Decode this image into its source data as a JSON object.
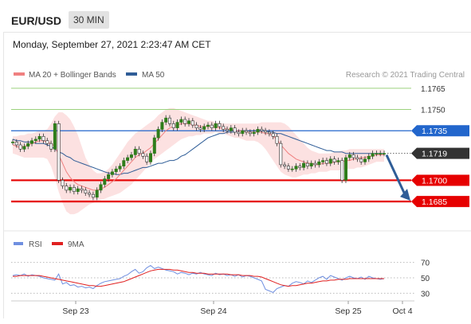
{
  "header": {
    "pair": "EUR/USD",
    "timeframe": "30 MIN"
  },
  "datetime": "Monday, September 27, 2021 2:23:47 AM CET",
  "legend": {
    "bollinger": "MA 20 + Bollinger Bands",
    "ma50": "MA 50",
    "credit": "Research © 2021 Trading Central",
    "rsi": "RSI",
    "nine_ma": "9MA"
  },
  "colors": {
    "bollinger": "#f08080",
    "band_fill": "#fcdcdc",
    "ma50": "#2f5d97",
    "green_level": "#9bd27d",
    "blue_level": "#2266cc",
    "red_level": "#e60000",
    "current_price": "#333333",
    "arrow": "#2f5d97",
    "rsi": "#6f8fe0",
    "rsi_ma": "#e02020",
    "candle_up": "#2e7d1b",
    "candle_down": "#c0392b"
  },
  "chart_data": [
    {
      "type": "candlestick",
      "title": "EUR/USD",
      "ylim": [
        1.168,
        1.177
      ],
      "x_ticks": [
        "Sep 23",
        "Sep 24",
        "Sep 25",
        "Oct 4"
      ],
      "levels": [
        {
          "value": 1.1765,
          "label": "1.1765",
          "kind": "green"
        },
        {
          "value": 1.175,
          "label": "1.1750",
          "kind": "green"
        },
        {
          "value": 1.1735,
          "label": "1.1735",
          "kind": "blue"
        },
        {
          "value": 1.1719,
          "label": "1.1719",
          "kind": "current"
        },
        {
          "value": 1.17,
          "label": "1.1700",
          "kind": "red"
        },
        {
          "value": 1.1685,
          "label": "1.1685",
          "kind": "red"
        }
      ],
      "close": [
        1.1727,
        1.1725,
        1.1722,
        1.1724,
        1.1726,
        1.1728,
        1.1729,
        1.1731,
        1.1728,
        1.1726,
        1.1722,
        1.174,
        1.17,
        1.1696,
        1.1693,
        1.1695,
        1.1692,
        1.1694,
        1.1693,
        1.1691,
        1.169,
        1.1688,
        1.1693,
        1.1697,
        1.1701,
        1.1704,
        1.1706,
        1.1708,
        1.171,
        1.1714,
        1.1716,
        1.1718,
        1.1722,
        1.1719,
        1.1717,
        1.1713,
        1.1719,
        1.173,
        1.1736,
        1.1741,
        1.1744,
        1.174,
        1.1737,
        1.1741,
        1.1743,
        1.174,
        1.1742,
        1.1739,
        1.1737,
        1.1736,
        1.1738,
        1.1739,
        1.1737,
        1.174,
        1.1738,
        1.1736,
        1.1735,
        1.1737,
        1.1734,
        1.1733,
        1.1735,
        1.1734,
        1.1733,
        1.1734,
        1.1736,
        1.1735,
        1.1734,
        1.1733,
        1.1731,
        1.1726,
        1.1711,
        1.171,
        1.1708,
        1.1708,
        1.171,
        1.1709,
        1.1712,
        1.171,
        1.1712,
        1.1711,
        1.1713,
        1.1714,
        1.1712,
        1.1715,
        1.1713,
        1.1714,
        1.17,
        1.1716,
        1.1718,
        1.1716,
        1.1715,
        1.1713,
        1.1715,
        1.1717,
        1.1719,
        1.1719,
        1.1719,
        1.1719
      ],
      "ma20": [
        1.1725,
        1.1724,
        1.1723,
        1.1724,
        1.1725,
        1.1726,
        1.1727,
        1.1728,
        1.1728,
        1.1727,
        1.1726,
        1.1724,
        1.1718,
        1.1712,
        1.1706,
        1.1702,
        1.1699,
        1.1697,
        1.1696,
        1.1695,
        1.1694,
        1.1693,
        1.1693,
        1.1694,
        1.1695,
        1.1697,
        1.1699,
        1.1701,
        1.1704,
        1.1707,
        1.171,
        1.1713,
        1.1716,
        1.1718,
        1.1719,
        1.1721,
        1.1723,
        1.1726,
        1.1729,
        1.1732,
        1.1735,
        1.1737,
        1.1738,
        1.1739,
        1.174,
        1.174,
        1.174,
        1.1739,
        1.1739,
        1.1738,
        1.1738,
        1.1738,
        1.1738,
        1.1738,
        1.1737,
        1.1737,
        1.1736,
        1.1736,
        1.1735,
        1.1735,
        1.1735,
        1.1734,
        1.1734,
        1.1734,
        1.1734,
        1.1734,
        1.1733,
        1.1733,
        1.1731,
        1.1729,
        1.1725,
        1.1722,
        1.1719,
        1.1717,
        1.1715,
        1.1714,
        1.1713,
        1.1712,
        1.1712,
        1.1711,
        1.1711,
        1.1712,
        1.1712,
        1.1712,
        1.1713,
        1.1713,
        1.1713,
        1.1714,
        1.1714,
        1.1715,
        1.1715,
        1.1716,
        1.1716,
        1.1717,
        1.1717,
        1.1718,
        1.1718,
        1.1718
      ],
      "bb_upper": [
        1.1731,
        1.1731,
        1.1732,
        1.1732,
        1.1733,
        1.1733,
        1.1734,
        1.1735,
        1.1735,
        1.1736,
        1.174,
        1.1745,
        1.1748,
        1.1748,
        1.1746,
        1.1743,
        1.1738,
        1.1732,
        1.1724,
        1.1716,
        1.1711,
        1.1707,
        1.1705,
        1.1705,
        1.1706,
        1.1708,
        1.1711,
        1.1715,
        1.1719,
        1.1723,
        1.1727,
        1.173,
        1.1733,
        1.1735,
        1.1737,
        1.1739,
        1.1741,
        1.1743,
        1.1746,
        1.1748,
        1.175,
        1.1751,
        1.1751,
        1.175,
        1.1749,
        1.1748,
        1.1747,
        1.1746,
        1.1745,
        1.1744,
        1.1743,
        1.1742,
        1.1742,
        1.1741,
        1.1741,
        1.174,
        1.174,
        1.174,
        1.174,
        1.174,
        1.174,
        1.174,
        1.174,
        1.174,
        1.174,
        1.1741,
        1.1741,
        1.1741,
        1.1741,
        1.1741,
        1.1741,
        1.174,
        1.1738,
        1.1735,
        1.1732,
        1.1729,
        1.1726,
        1.1723,
        1.1721,
        1.172,
        1.1719,
        1.1719,
        1.1719,
        1.1719,
        1.172,
        1.172,
        1.1721,
        1.1721,
        1.1722,
        1.1722,
        1.1722,
        1.1722,
        1.1722,
        1.1722,
        1.1722,
        1.1722,
        1.1722,
        1.1722
      ],
      "bb_lower": [
        1.1719,
        1.1718,
        1.1717,
        1.1716,
        1.1716,
        1.1716,
        1.1716,
        1.1716,
        1.1716,
        1.1715,
        1.171,
        1.1702,
        1.1692,
        1.1684,
        1.1678,
        1.1676,
        1.1676,
        1.1677,
        1.1679,
        1.1681,
        1.1683,
        1.1684,
        1.1685,
        1.1686,
        1.1687,
        1.1688,
        1.1689,
        1.169,
        1.1691,
        1.1693,
        1.1695,
        1.1697,
        1.17,
        1.1703,
        1.1706,
        1.1709,
        1.1712,
        1.1715,
        1.1717,
        1.1719,
        1.1721,
        1.1723,
        1.1725,
        1.1727,
        1.1729,
        1.173,
        1.1731,
        1.1731,
        1.1732,
        1.1732,
        1.1733,
        1.1733,
        1.1733,
        1.1734,
        1.1733,
        1.1733,
        1.1732,
        1.1731,
        1.173,
        1.173,
        1.1729,
        1.1728,
        1.1728,
        1.1728,
        1.1727,
        1.1725,
        1.1722,
        1.1718,
        1.1714,
        1.171,
        1.1706,
        1.1704,
        1.1703,
        1.1702,
        1.1702,
        1.1703,
        1.1704,
        1.1704,
        1.1705,
        1.1705,
        1.1706,
        1.1706,
        1.1706,
        1.1707,
        1.1707,
        1.1707,
        1.1707,
        1.1708,
        1.1708,
        1.1708,
        1.1709,
        1.1709,
        1.171,
        1.1711,
        1.1712,
        1.1713,
        1.1713,
        1.1713
      ],
      "ma50": [
        1.1729,
        1.1728,
        1.1728,
        1.1727,
        1.1727,
        1.1727,
        1.1726,
        1.1726,
        1.1726,
        1.1725,
        1.1724,
        1.1722,
        1.172,
        1.1719,
        1.1717,
        1.1716,
        1.1714,
        1.1713,
        1.1712,
        1.1711,
        1.171,
        1.1709,
        1.1708,
        1.1707,
        1.1706,
        1.1705,
        1.1705,
        1.1704,
        1.1704,
        1.1705,
        1.1705,
        1.1706,
        1.1707,
        1.1708,
        1.1709,
        1.1709,
        1.171,
        1.1711,
        1.1712,
        1.1712,
        1.1713,
        1.1714,
        1.1714,
        1.1715,
        1.1717,
        1.1718,
        1.172,
        1.1722,
        1.1724,
        1.1726,
        1.1728,
        1.173,
        1.1731,
        1.1732,
        1.1733,
        1.1733,
        1.1734,
        1.1734,
        1.1734,
        1.1735,
        1.1735,
        1.1735,
        1.1735,
        1.1735,
        1.1735,
        1.1735,
        1.1735,
        1.1734,
        1.1734,
        1.1733,
        1.1733,
        1.1732,
        1.1731,
        1.173,
        1.1729,
        1.1728,
        1.1727,
        1.1726,
        1.1725,
        1.1724,
        1.1723,
        1.1722,
        1.1721,
        1.1721,
        1.172,
        1.172,
        1.172,
        1.1719,
        1.1719,
        1.1719,
        1.1719,
        1.1719,
        1.1719,
        1.1719,
        1.1719,
        1.1719,
        1.1719,
        1.1719
      ],
      "forecast": {
        "from": 1.1719,
        "to": 1.1685
      }
    },
    {
      "type": "line",
      "title": "RSI",
      "ylim": [
        20,
        80
      ],
      "y_ticks": [
        70,
        50,
        30
      ],
      "series": [
        {
          "name": "RSI",
          "values": [
            53,
            54,
            53,
            55,
            52,
            54,
            53,
            52,
            50,
            49,
            48,
            47,
            55,
            42,
            44,
            40,
            41,
            38,
            39,
            37,
            38,
            36,
            40,
            43,
            45,
            46,
            47,
            48,
            49,
            52,
            54,
            58,
            61,
            56,
            58,
            63,
            66,
            62,
            64,
            62,
            60,
            59,
            58,
            55,
            57,
            56,
            54,
            56,
            55,
            57,
            55,
            54,
            53,
            56,
            54,
            55,
            53,
            54,
            52,
            54,
            51,
            53,
            52,
            50,
            48,
            46,
            35,
            33,
            31,
            36,
            38,
            40,
            39,
            43,
            45,
            44,
            42,
            46,
            44,
            47,
            50,
            52,
            48,
            53,
            51,
            49,
            47,
            50,
            52,
            50,
            49,
            51,
            48,
            52,
            50,
            49,
            48,
            49
          ]
        },
        {
          "name": "9MA",
          "values": [
            52,
            52,
            53,
            53,
            53,
            53,
            53,
            53,
            52,
            51,
            50,
            49,
            48,
            47,
            46,
            45,
            44,
            43,
            42,
            41,
            40,
            40,
            39,
            39,
            40,
            41,
            42,
            43,
            44,
            45,
            47,
            49,
            51,
            53,
            55,
            57,
            59,
            60,
            61,
            61,
            61,
            61,
            60,
            60,
            59,
            58,
            57,
            57,
            56,
            56,
            56,
            55,
            55,
            55,
            55,
            55,
            55,
            54,
            54,
            54,
            53,
            53,
            53,
            52,
            52,
            51,
            49,
            47,
            45,
            43,
            41,
            40,
            39,
            40,
            40,
            41,
            42,
            43,
            43,
            44,
            45,
            46,
            46,
            47,
            47,
            48,
            48,
            48,
            49,
            49,
            49,
            49,
            49,
            49,
            49,
            49,
            49,
            49
          ]
        }
      ]
    }
  ]
}
